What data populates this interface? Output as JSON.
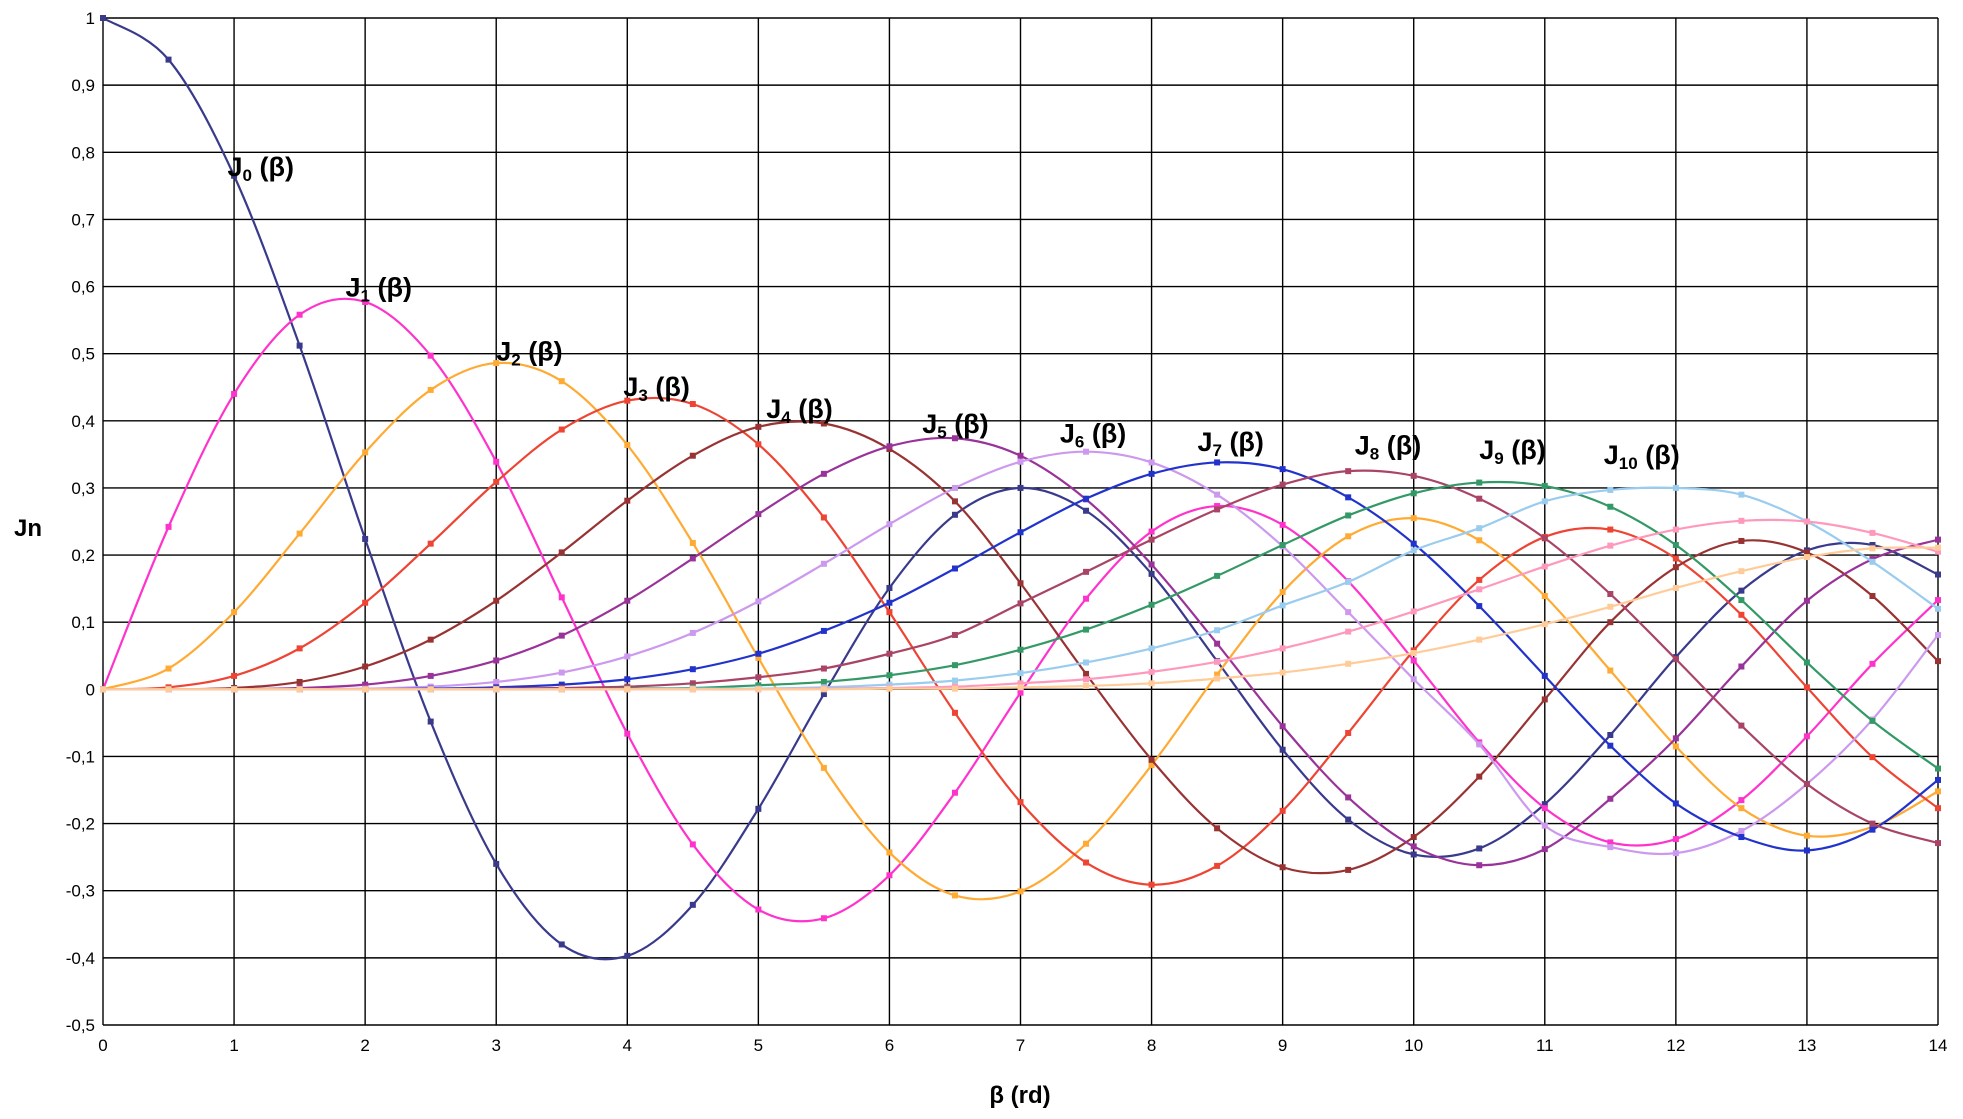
{
  "chart_data": {
    "type": "line",
    "title": "",
    "xlabel": "β (rd)",
    "ylabel": "Jn",
    "xlim": [
      0,
      14
    ],
    "ylim": [
      -0.5,
      1
    ],
    "grid": true,
    "legend": "none",
    "x_ticks": [
      "0",
      "1",
      "2",
      "3",
      "4",
      "5",
      "6",
      "7",
      "8",
      "9",
      "10",
      "11",
      "12",
      "13",
      "14"
    ],
    "y_ticks": [
      "1",
      "0,9",
      "0,8",
      "0,7",
      "0,6",
      "0,5",
      "0,4",
      "0,3",
      "0,2",
      "0,1",
      "0",
      "-0,1",
      "-0,2",
      "-0,3",
      "-0,4",
      "-0,5"
    ],
    "x": [
      0,
      0.5,
      1,
      1.5,
      2,
      2.5,
      3,
      3.5,
      4,
      4.5,
      5,
      5.5,
      6,
      6.5,
      7,
      7.5,
      8,
      8.5,
      9,
      9.5,
      10,
      10.5,
      11,
      11.5,
      12,
      12.5,
      13,
      13.5,
      14
    ],
    "series": [
      {
        "order": 0,
        "color": "#3a3a8c",
        "values": [
          1,
          0.938,
          0.765,
          0.512,
          0.224,
          -0.048,
          -0.26,
          -0.38,
          -0.397,
          -0.321,
          -0.178,
          -0.007,
          0.151,
          0.26,
          0.3,
          0.266,
          0.172,
          0.042,
          -0.09,
          -0.194,
          -0.246,
          -0.237,
          -0.171,
          -0.068,
          0.048,
          0.147,
          0.207,
          0.215,
          0.171
        ]
      },
      {
        "order": 1,
        "color": "#ff33cc",
        "values": [
          0,
          0.242,
          0.44,
          0.558,
          0.577,
          0.497,
          0.339,
          0.137,
          -0.066,
          -0.231,
          -0.328,
          -0.341,
          -0.277,
          -0.154,
          -0.005,
          0.135,
          0.235,
          0.273,
          0.245,
          0.161,
          0.043,
          -0.079,
          -0.177,
          -0.228,
          -0.223,
          -0.165,
          -0.07,
          0.038,
          0.133
        ]
      },
      {
        "order": 2,
        "color": "#ffaa33",
        "values": [
          0,
          0.031,
          0.115,
          0.232,
          0.353,
          0.446,
          0.486,
          0.459,
          0.364,
          0.218,
          0.047,
          -0.117,
          -0.243,
          -0.307,
          -0.301,
          -0.23,
          -0.113,
          0.022,
          0.145,
          0.228,
          0.255,
          0.222,
          0.139,
          0.028,
          -0.085,
          -0.177,
          -0.218,
          -0.205,
          -0.152
        ]
      },
      {
        "order": 3,
        "color": "#ee4433",
        "values": [
          0,
          0.003,
          0.02,
          0.061,
          0.129,
          0.217,
          0.309,
          0.387,
          0.43,
          0.425,
          0.365,
          0.256,
          0.115,
          -0.035,
          -0.168,
          -0.258,
          -0.291,
          -0.263,
          -0.181,
          -0.065,
          0.058,
          0.163,
          0.227,
          0.238,
          0.195,
          0.111,
          0.003,
          -0.101,
          -0.177
        ]
      },
      {
        "order": 4,
        "color": "#993333",
        "values": [
          0,
          0.0,
          0.002,
          0.011,
          0.034,
          0.074,
          0.132,
          0.204,
          0.281,
          0.348,
          0.391,
          0.396,
          0.358,
          0.28,
          0.158,
          0.023,
          -0.105,
          -0.207,
          -0.265,
          -0.269,
          -0.22,
          -0.13,
          -0.015,
          0.1,
          0.182,
          0.221,
          0.204,
          0.139,
          0.042
        ]
      },
      {
        "order": 5,
        "color": "#993399",
        "values": [
          0,
          0,
          0.0,
          0.002,
          0.007,
          0.02,
          0.043,
          0.08,
          0.132,
          0.195,
          0.261,
          0.321,
          0.362,
          0.374,
          0.348,
          0.283,
          0.186,
          0.068,
          -0.055,
          -0.161,
          -0.234,
          -0.262,
          -0.238,
          -0.163,
          -0.073,
          0.034,
          0.132,
          0.194,
          0.223
        ]
      },
      {
        "order": 6,
        "color": "#cc99ee",
        "values": [
          0,
          0,
          0,
          0.0,
          0.001,
          0.004,
          0.011,
          0.025,
          0.049,
          0.084,
          0.131,
          0.187,
          0.246,
          0.3,
          0.339,
          0.354,
          0.338,
          0.29,
          0.213,
          0.115,
          0.015,
          -0.082,
          -0.203,
          -0.235,
          -0.244,
          -0.211,
          -0.141,
          -0.045,
          0.081
        ]
      },
      {
        "order": 7,
        "color": "#2233cc",
        "values": [
          0,
          0,
          0,
          0,
          0.0,
          0.001,
          0.003,
          0.007,
          0.015,
          0.03,
          0.053,
          0.087,
          0.129,
          0.18,
          0.234,
          0.284,
          0.321,
          0.338,
          0.328,
          0.286,
          0.217,
          0.124,
          0.02,
          -0.084,
          -0.17,
          -0.22,
          -0.24,
          -0.209,
          -0.135
        ]
      },
      {
        "order": 8,
        "color": "#aa4466",
        "values": [
          0,
          0,
          0,
          0,
          0,
          0.0,
          0.001,
          0.002,
          0.004,
          0.009,
          0.018,
          0.031,
          0.053,
          0.081,
          0.128,
          0.175,
          0.223,
          0.268,
          0.305,
          0.325,
          0.318,
          0.284,
          0.225,
          0.142,
          0.045,
          -0.054,
          -0.141,
          -0.2,
          -0.229
        ]
      },
      {
        "order": 9,
        "color": "#339966",
        "values": [
          0,
          0,
          0,
          0,
          0,
          0,
          0.0,
          0.0,
          0.001,
          0.002,
          0.006,
          0.011,
          0.021,
          0.036,
          0.059,
          0.089,
          0.126,
          0.169,
          0.215,
          0.259,
          0.292,
          0.308,
          0.303,
          0.272,
          0.215,
          0.133,
          0.04,
          -0.047,
          -0.118
        ]
      },
      {
        "order": 10,
        "color": "#99ccee",
        "values": [
          0,
          0,
          0,
          0,
          0,
          0,
          0,
          0.0,
          0.0,
          0.001,
          0.001,
          0.003,
          0.007,
          0.013,
          0.024,
          0.04,
          0.061,
          0.088,
          0.125,
          0.16,
          0.207,
          0.24,
          0.28,
          0.297,
          0.3,
          0.29,
          0.25,
          0.19,
          0.12
        ]
      },
      {
        "order": 11,
        "color": "#ff99bb",
        "values": [
          0,
          0,
          0,
          0,
          0,
          0,
          0,
          0,
          0,
          0,
          0.0,
          0.001,
          0.002,
          0.004,
          0.009,
          0.015,
          0.026,
          0.041,
          0.061,
          0.086,
          0.116,
          0.149,
          0.183,
          0.214,
          0.238,
          0.251,
          0.25,
          0.233,
          0.205
        ]
      },
      {
        "order": 12,
        "color": "#ffcc99",
        "values": [
          0,
          0,
          0,
          0,
          0,
          0,
          0,
          0,
          0,
          0,
          0,
          0,
          0.001,
          0.001,
          0.003,
          0.005,
          0.009,
          0.016,
          0.025,
          0.038,
          0.054,
          0.074,
          0.097,
          0.123,
          0.151,
          0.176,
          0.197,
          0.21,
          0.211
        ]
      }
    ],
    "annotations": [
      {
        "text": "J",
        "sub": "0",
        "suffix": " (β)",
        "x": 0.95,
        "y": 0.765
      },
      {
        "text": "J",
        "sub": "1",
        "suffix": " (β)",
        "x": 1.85,
        "y": 0.585
      },
      {
        "text": "J",
        "sub": "2",
        "suffix": " (β)",
        "x": 3.0,
        "y": 0.49
      },
      {
        "text": "J",
        "sub": "3",
        "suffix": " (β)",
        "x": 3.97,
        "y": 0.437
      },
      {
        "text": "J",
        "sub": "4",
        "suffix": " (β)",
        "x": 5.06,
        "y": 0.404
      },
      {
        "text": "J",
        "sub": "5",
        "suffix": " (β)",
        "x": 6.25,
        "y": 0.382
      },
      {
        "text": "J",
        "sub": "6",
        "suffix": " (β)",
        "x": 7.3,
        "y": 0.368
      },
      {
        "text": "J",
        "sub": "7",
        "suffix": " (β)",
        "x": 8.35,
        "y": 0.355
      },
      {
        "text": "J",
        "sub": "8",
        "suffix": " (β)",
        "x": 9.55,
        "y": 0.35
      },
      {
        "text": "J",
        "sub": "9",
        "suffix": " (β)",
        "x": 10.5,
        "y": 0.343
      },
      {
        "text": "J",
        "sub": "10",
        "suffix": " (β)",
        "x": 11.45,
        "y": 0.336
      }
    ]
  }
}
